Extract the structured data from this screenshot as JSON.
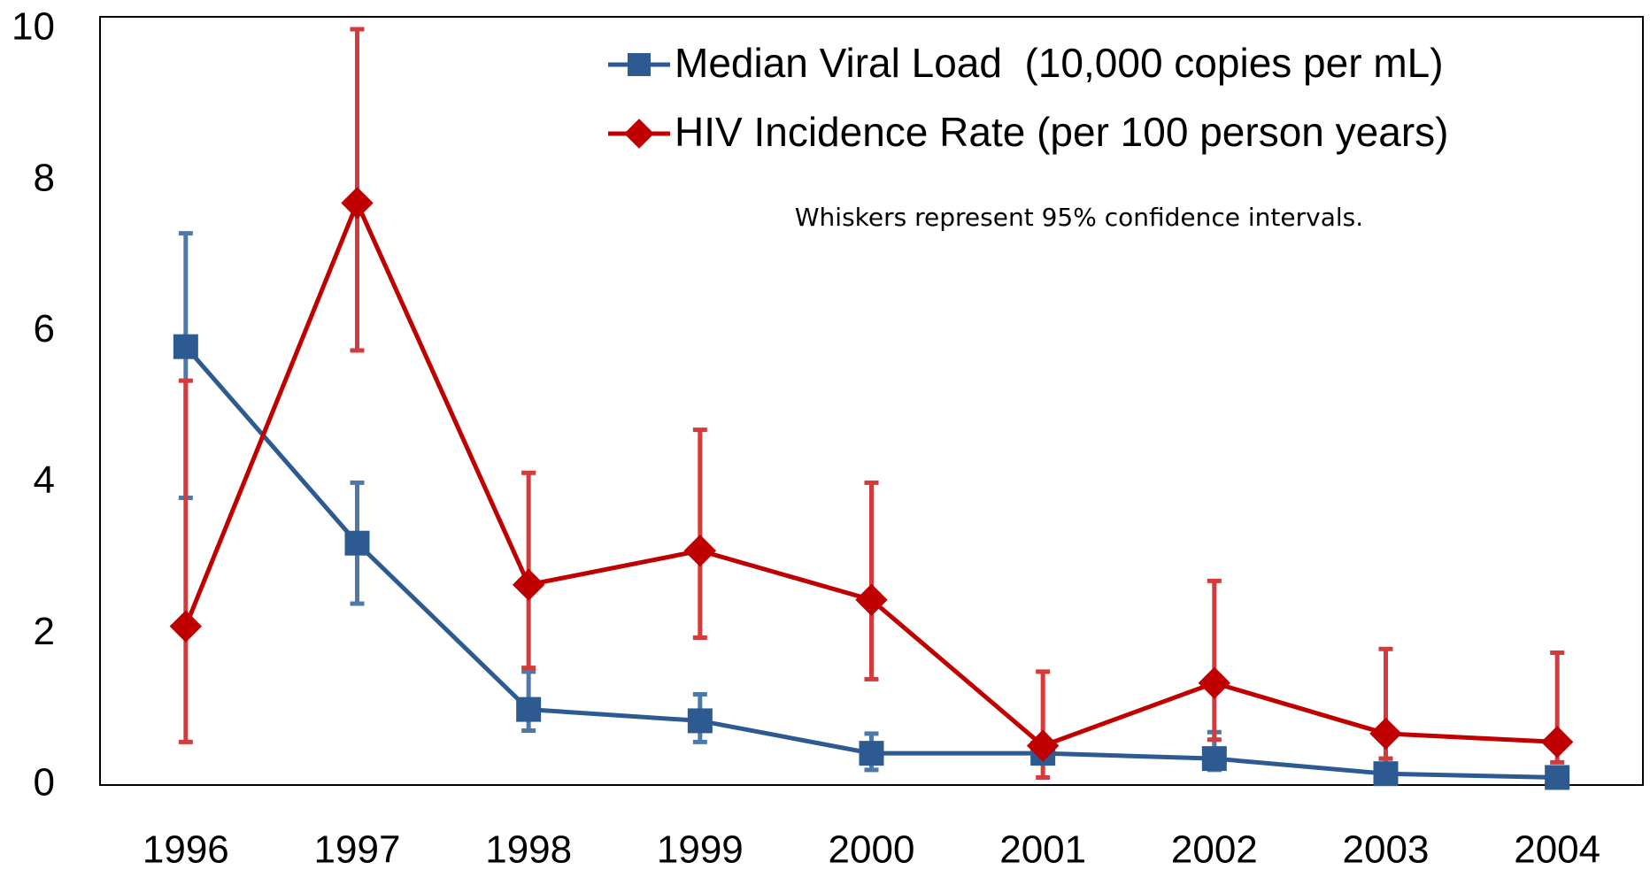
{
  "chart_data": {
    "type": "line",
    "annotation": "Whiskers represent 95% confidence intervals.",
    "categories": [
      "1996",
      "1997",
      "1998",
      "1999",
      "2000",
      "2001",
      "2002",
      "2003",
      "2004"
    ],
    "ylim": [
      0,
      10
    ],
    "yticks": [
      0,
      2,
      4,
      6,
      8,
      10
    ],
    "legend": "upper right",
    "series": [
      {
        "name": "Median Viral Load  (10,000 copies per mL)",
        "color": "#2e5a92",
        "error_color": "#4f78aa",
        "marker": "square",
        "values": [
          5.8,
          3.2,
          1.0,
          0.85,
          0.42,
          0.42,
          0.35,
          0.15,
          0.1
        ],
        "ci_low": [
          3.8,
          2.4,
          0.72,
          0.57,
          0.2,
          0.35,
          0.2,
          0.08,
          0.04
        ],
        "ci_high": [
          7.3,
          4.0,
          1.5,
          1.2,
          0.68,
          0.5,
          0.7,
          0.35,
          0.18
        ]
      },
      {
        "name": "HIV Incidence Rate (per 100 person years)",
        "color": "#c00000",
        "error_color": "#d63a3a",
        "marker": "diamond",
        "values": [
          2.1,
          7.7,
          2.65,
          3.1,
          2.45,
          0.52,
          1.35,
          0.68,
          0.57
        ],
        "ci_low": [
          0.57,
          5.75,
          1.55,
          1.95,
          1.4,
          0.1,
          0.6,
          0.35,
          0.3
        ],
        "ci_high": [
          5.35,
          10.0,
          4.13,
          4.7,
          4.0,
          1.5,
          2.7,
          1.8,
          1.75
        ]
      }
    ]
  }
}
